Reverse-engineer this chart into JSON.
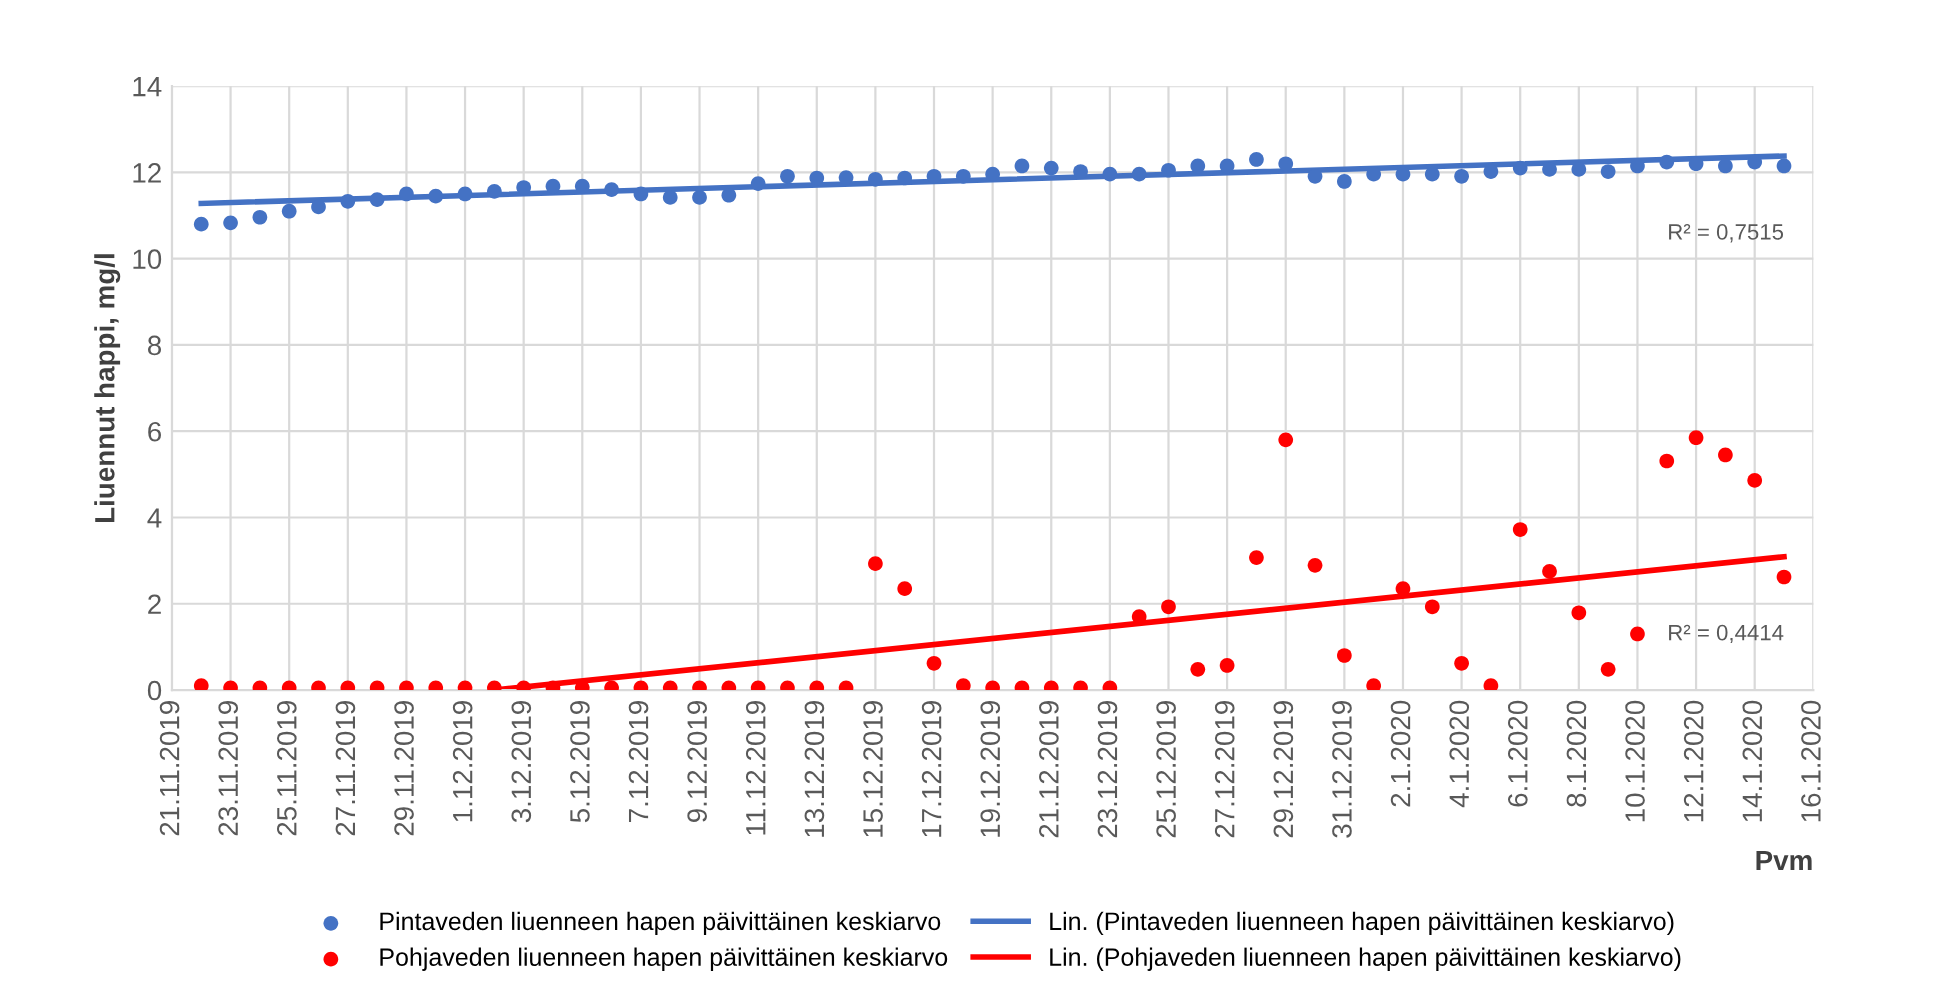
{
  "chart_data": {
    "type": "scatter",
    "xlabel": "Pvm",
    "ylabel": "Liuennut happi, mg/l",
    "x": [
      "2019-11-22",
      "2019-11-23",
      "2019-11-24",
      "2019-11-25",
      "2019-11-26",
      "2019-11-27",
      "2019-11-28",
      "2019-11-29",
      "2019-11-30",
      "2019-12-01",
      "2019-12-02",
      "2019-12-03",
      "2019-12-04",
      "2019-12-05",
      "2019-12-06",
      "2019-12-07",
      "2019-12-08",
      "2019-12-09",
      "2019-12-10",
      "2019-12-11",
      "2019-12-12",
      "2019-12-13",
      "2019-12-14",
      "2019-12-15",
      "2019-12-16",
      "2019-12-17",
      "2019-12-18",
      "2019-12-19",
      "2019-12-20",
      "2019-12-21",
      "2019-12-22",
      "2019-12-23",
      "2019-12-24",
      "2019-12-25",
      "2019-12-26",
      "2019-12-27",
      "2019-12-28",
      "2019-12-29",
      "2019-12-30",
      "2019-12-31",
      "2020-01-01",
      "2020-01-02",
      "2020-01-03",
      "2020-01-04",
      "2020-01-05",
      "2020-01-06",
      "2020-01-07",
      "2020-01-08",
      "2020-01-09",
      "2020-01-10",
      "2020-01-11",
      "2020-01-12",
      "2020-01-13",
      "2020-01-14",
      "2020-01-15"
    ],
    "series": [
      {
        "name": "Pintaveden liuenneen hapen päivittäinen keskiarvo",
        "color": "#4472c4",
        "marker": "circle",
        "values": [
          10.8,
          10.83,
          10.96,
          11.1,
          11.2,
          11.33,
          11.37,
          11.5,
          11.45,
          11.5,
          11.56,
          11.65,
          11.68,
          11.68,
          11.6,
          11.5,
          11.42,
          11.42,
          11.47,
          11.74,
          11.91,
          11.87,
          11.88,
          11.84,
          11.87,
          11.91,
          11.91,
          11.96,
          12.15,
          12.1,
          12.02,
          11.96,
          11.96,
          12.05,
          12.15,
          12.15,
          12.3,
          12.2,
          11.91,
          11.79,
          11.96,
          11.96,
          11.96,
          11.91,
          12.02,
          12.1,
          12.07,
          12.07,
          12.02,
          12.15,
          12.24,
          12.2,
          12.15,
          12.24,
          12.15
        ]
      },
      {
        "name": "Pohjaveden liuenneen hapen päivittäinen keskiarvo",
        "color": "#ff0000",
        "marker": "circle",
        "values": [
          0.1,
          0.05,
          0.05,
          0.05,
          0.05,
          0.05,
          0.05,
          0.05,
          0.05,
          0.05,
          0.05,
          0.05,
          0.05,
          0.05,
          0.05,
          0.05,
          0.05,
          0.05,
          0.05,
          0.05,
          0.05,
          0.05,
          0.05,
          2.93,
          2.35,
          0.62,
          0.1,
          0.05,
          0.05,
          0.05,
          0.05,
          0.05,
          1.7,
          1.93,
          0.48,
          0.57,
          3.07,
          5.8,
          2.89,
          0.8,
          0.1,
          2.35,
          1.93,
          0.62,
          0.1,
          3.72,
          2.75,
          1.79,
          0.48,
          1.3,
          5.31,
          5.85,
          5.45,
          4.86,
          2.62
        ]
      },
      {
        "name": "Lin. (Pintaveden liuenneen hapen päivittäinen keskiarvo)",
        "type": "line",
        "color": "#4472c4",
        "x": [
          "2019-11-22",
          "2020-01-15"
        ],
        "values": [
          11.28,
          12.38
        ]
      },
      {
        "name": "Lin. (Pohjaveden liuenneen hapen päivittäinen keskiarvo)",
        "type": "line",
        "color": "#ff0000",
        "x": [
          "2019-12-02",
          "2020-01-15"
        ],
        "values": [
          0,
          3.09
        ]
      }
    ],
    "annotations": [
      "R² = 0,7515",
      "R² = 0,4414"
    ],
    "xlim": [
      "2019-11-21",
      "2020-01-16"
    ],
    "xticks": [
      {
        "value": "2019-11-21",
        "label": "21.11.2019"
      },
      {
        "value": "2019-11-23",
        "label": "23.11.2019"
      },
      {
        "value": "2019-11-25",
        "label": "25.11.2019"
      },
      {
        "value": "2019-11-27",
        "label": "27.11.2019"
      },
      {
        "value": "2019-11-29",
        "label": "29.11.2019"
      },
      {
        "value": "2019-12-01",
        "label": "1.12.2019"
      },
      {
        "value": "2019-12-03",
        "label": "3.12.2019"
      },
      {
        "value": "2019-12-05",
        "label": "5.12.2019"
      },
      {
        "value": "2019-12-07",
        "label": "7.12.2019"
      },
      {
        "value": "2019-12-09",
        "label": "9.12.2019"
      },
      {
        "value": "2019-12-11",
        "label": "11.12.2019"
      },
      {
        "value": "2019-12-13",
        "label": "13.12.2019"
      },
      {
        "value": "2019-12-15",
        "label": "15.12.2019"
      },
      {
        "value": "2019-12-17",
        "label": "17.12.2019"
      },
      {
        "value": "2019-12-19",
        "label": "19.12.2019"
      },
      {
        "value": "2019-12-21",
        "label": "21.12.2019"
      },
      {
        "value": "2019-12-23",
        "label": "23.12.2019"
      },
      {
        "value": "2019-12-25",
        "label": "25.12.2019"
      },
      {
        "value": "2019-12-27",
        "label": "27.12.2019"
      },
      {
        "value": "2019-12-29",
        "label": "29.12.2019"
      },
      {
        "value": "2019-12-31",
        "label": "31.12.2019"
      },
      {
        "value": "2020-01-02",
        "label": "2.1.2020"
      },
      {
        "value": "2020-01-04",
        "label": "4.1.2020"
      },
      {
        "value": "2020-01-06",
        "label": "6.1.2020"
      },
      {
        "value": "2020-01-08",
        "label": "8.1.2020"
      },
      {
        "value": "2020-01-10",
        "label": "10.1.2020"
      },
      {
        "value": "2020-01-12",
        "label": "12.1.2020"
      },
      {
        "value": "2020-01-14",
        "label": "14.1.2020"
      },
      {
        "value": "2020-01-16",
        "label": "16.1.2020"
      }
    ],
    "ylim": [
      0,
      14
    ],
    "yticks": [
      0,
      2,
      4,
      6,
      8,
      10,
      12,
      14
    ],
    "grid": true,
    "legend": "bottom"
  }
}
